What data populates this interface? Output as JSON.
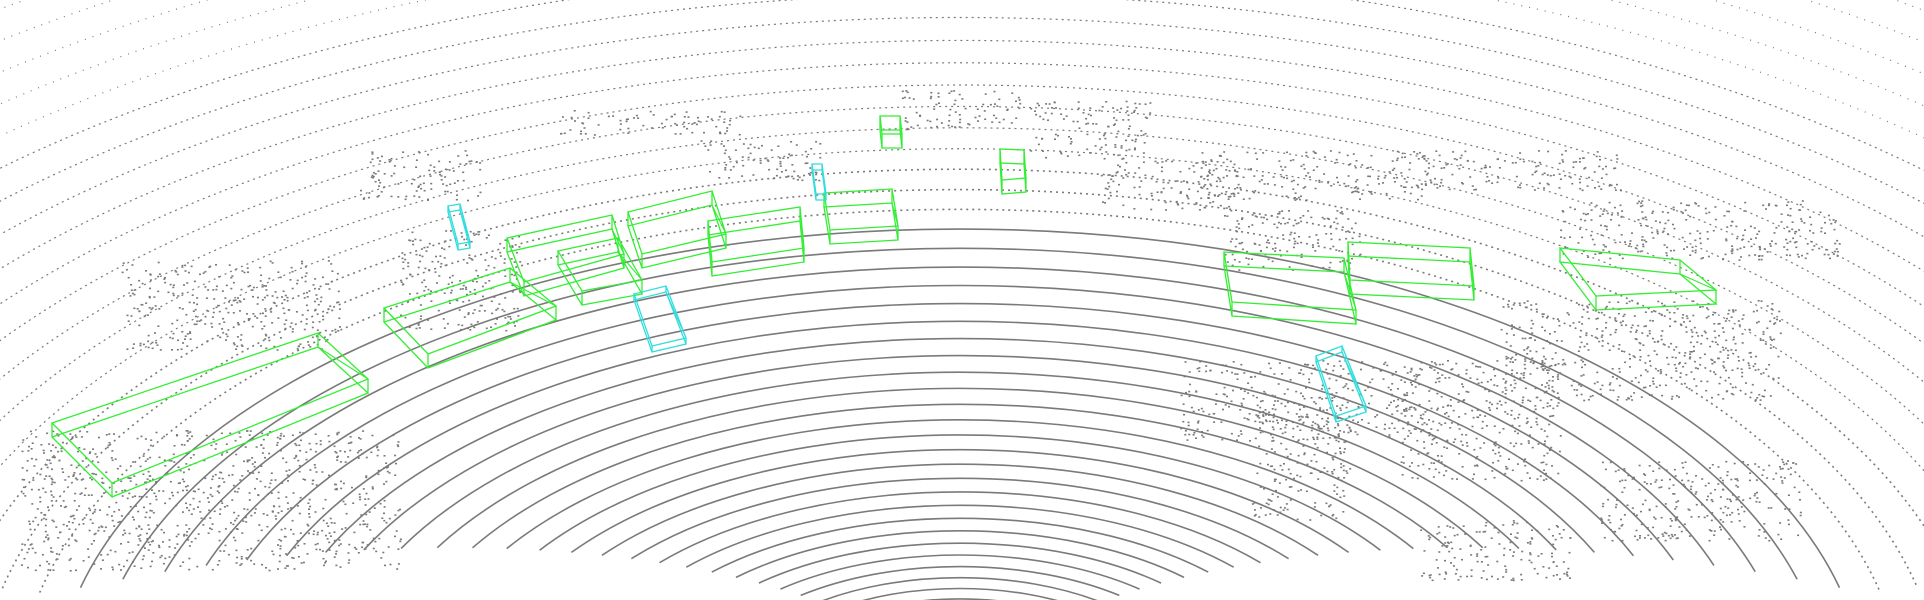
{
  "scene": {
    "background": "#ffffff",
    "point_color": "#7a7a7a",
    "car_box_color": "#33ee33",
    "pedestrian_box_color": "#33dddd"
  },
  "detections": [
    {
      "name": "car-box-1",
      "class": "car"
    },
    {
      "name": "car-box-2",
      "class": "car"
    },
    {
      "name": "car-box-3",
      "class": "car"
    },
    {
      "name": "car-box-4",
      "class": "car"
    },
    {
      "name": "car-box-5",
      "class": "car"
    },
    {
      "name": "car-box-6",
      "class": "car"
    },
    {
      "name": "car-box-7",
      "class": "car"
    },
    {
      "name": "car-box-8",
      "class": "car"
    },
    {
      "name": "car-box-9",
      "class": "car"
    },
    {
      "name": "car-box-10",
      "class": "car"
    },
    {
      "name": "car-box-11",
      "class": "car"
    },
    {
      "name": "car-box-12",
      "class": "car"
    },
    {
      "name": "pedestrian-box-1",
      "class": "pedestrian"
    },
    {
      "name": "pedestrian-box-2",
      "class": "pedestrian"
    },
    {
      "name": "pedestrian-box-3",
      "class": "pedestrian"
    },
    {
      "name": "pedestrian-box-4",
      "class": "pedestrian"
    }
  ]
}
